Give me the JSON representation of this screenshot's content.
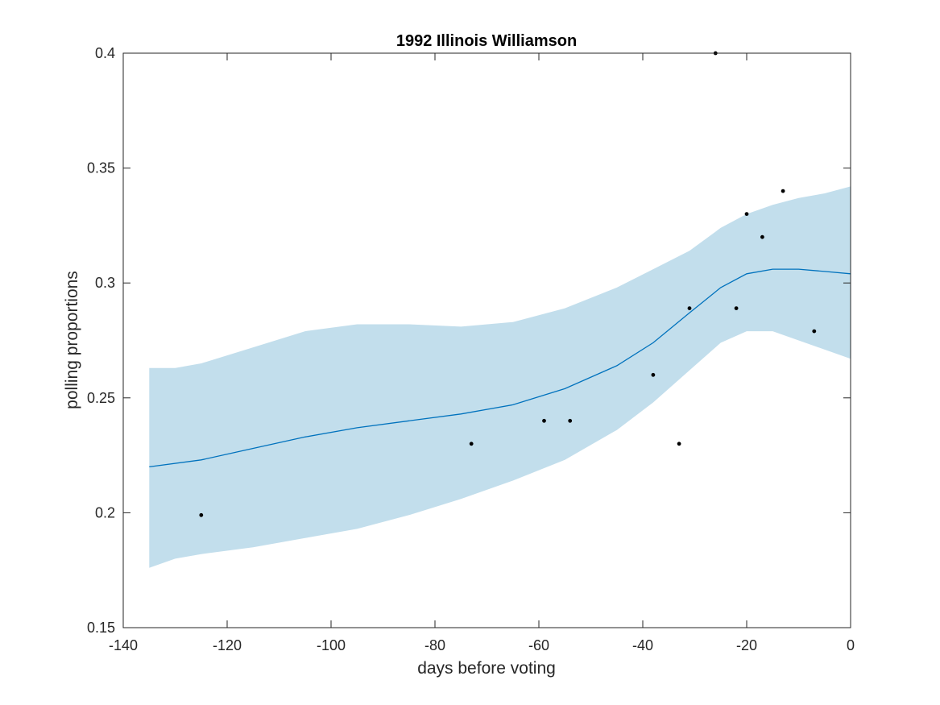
{
  "chart_data": {
    "type": "line",
    "title": "1992 Illinois Williamson",
    "xlabel": "days before voting",
    "ylabel": "polling proportions",
    "xlim": [
      -140,
      0
    ],
    "ylim": [
      0.15,
      0.4
    ],
    "xticks": [
      -140,
      -120,
      -100,
      -80,
      -60,
      -40,
      -20,
      0
    ],
    "yticks": [
      0.15,
      0.2,
      0.25,
      0.3,
      0.35,
      0.4
    ],
    "xtick_labels": [
      "-140",
      "-120",
      "-100",
      "-80",
      "-60",
      "-40",
      "-20",
      "0"
    ],
    "ytick_labels": [
      "0.15",
      "0.2",
      "0.25",
      "0.3",
      "0.35",
      "0.4"
    ],
    "grid": false,
    "colors": {
      "trend": "#0072BD",
      "band": "#C2DEEC",
      "points": "#000000",
      "axes": "#262626"
    },
    "series": [
      {
        "type": "line",
        "x": [
          -135,
          -125,
          -115,
          -105,
          -95,
          -85,
          -75,
          -65,
          -55,
          -45,
          -38,
          -31,
          -25,
          -20,
          -15,
          -10,
          -5,
          0
        ],
        "y": [
          0.22,
          0.223,
          0.228,
          0.233,
          0.237,
          0.24,
          0.243,
          0.247,
          0.254,
          0.264,
          0.274,
          0.287,
          0.298,
          0.304,
          0.306,
          0.306,
          0.305,
          0.304
        ]
      },
      {
        "type": "band",
        "x": [
          -135,
          -130,
          -125,
          -115,
          -105,
          -95,
          -85,
          -75,
          -65,
          -55,
          -45,
          -38,
          -31,
          -25,
          -20,
          -15,
          -10,
          -5,
          0
        ],
        "upper": [
          0.263,
          0.263,
          0.265,
          0.272,
          0.279,
          0.282,
          0.282,
          0.281,
          0.283,
          0.289,
          0.298,
          0.306,
          0.314,
          0.324,
          0.33,
          0.334,
          0.337,
          0.339,
          0.342
        ],
        "lower": [
          0.176,
          0.18,
          0.182,
          0.185,
          0.189,
          0.193,
          0.199,
          0.206,
          0.214,
          0.223,
          0.236,
          0.248,
          0.262,
          0.274,
          0.279,
          0.279,
          0.275,
          0.271,
          0.267
        ]
      },
      {
        "type": "scatter",
        "x": [
          -125,
          -73,
          -59,
          -54,
          -38,
          -33,
          -31,
          -26,
          -22,
          -20,
          -17,
          -13,
          -7
        ],
        "y": [
          0.199,
          0.23,
          0.24,
          0.24,
          0.26,
          0.23,
          0.289,
          0.4,
          0.289,
          0.33,
          0.32,
          0.34,
          0.279
        ]
      }
    ]
  }
}
